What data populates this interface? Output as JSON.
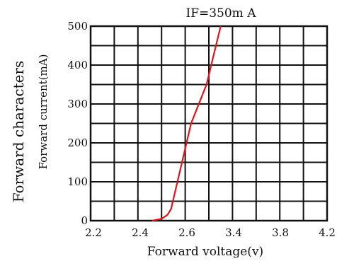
{
  "chart_data": {
    "type": "line",
    "title": "IF=350m A",
    "side_title": "Forward characters",
    "xlabel": "Forward voltage(v)",
    "ylabel": "Forward current(mA)",
    "xlim": [
      2.2,
      4.2
    ],
    "ylim": [
      0,
      500
    ],
    "x_ticks": [
      2.2,
      2.4,
      2.6,
      3.4,
      3.8,
      4.2
    ],
    "x_tick_labels": [
      "2.2",
      "2.4",
      "2.6",
      "3.4",
      "3.8",
      "4.2"
    ],
    "y_ticks": [
      0,
      100,
      200,
      300,
      400,
      500
    ],
    "y_tick_labels": [
      "0",
      "100",
      "200",
      "300",
      "400",
      "500"
    ],
    "grid": true,
    "series": [
      {
        "color": "#e0141c",
        "x": [
          2.72,
          2.8,
          2.85,
          2.88,
          3.05,
          3.18,
          3.3
        ],
        "y": [
          0,
          5,
          15,
          30,
          250,
          350,
          500
        ]
      }
    ]
  }
}
